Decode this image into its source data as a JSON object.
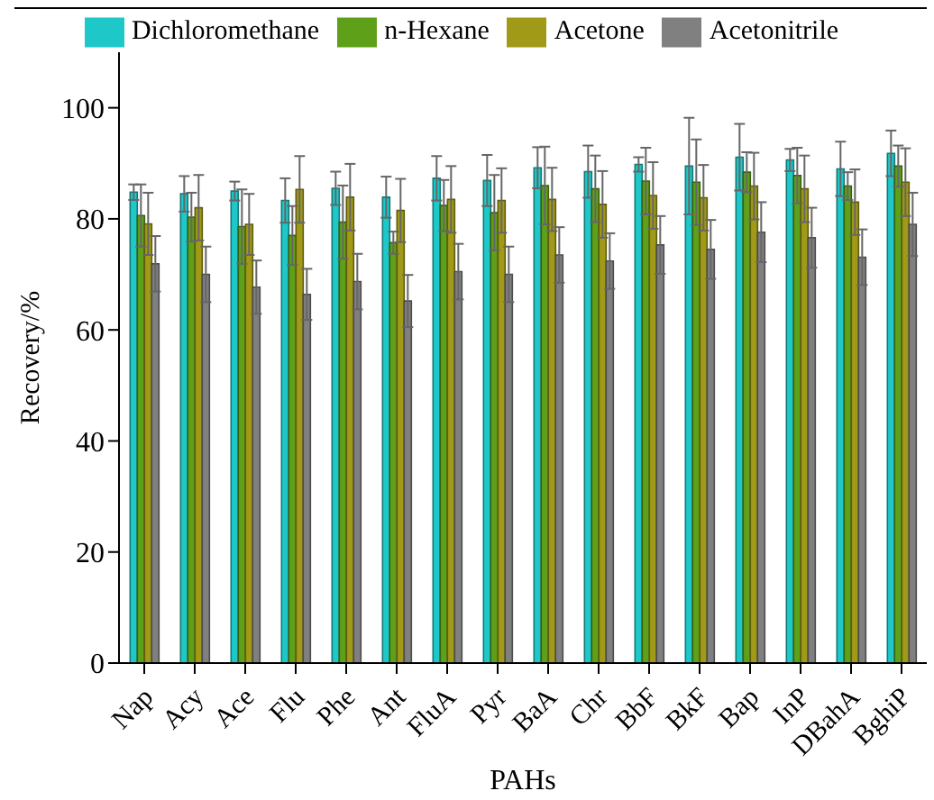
{
  "chart_data": {
    "type": "bar",
    "xlabel": "PAHs",
    "ylabel": "Recovery/%",
    "categories": [
      "Nap",
      "Acy",
      "Ace",
      "Flu",
      "Phe",
      "Ant",
      "FluA",
      "Pyr",
      "BaA",
      "Chr",
      "BbF",
      "BkF",
      "Bap",
      "InP",
      "DBahA",
      "BghiP"
    ],
    "series": [
      {
        "name": "Dichloromethane",
        "color": "#1fc8c8",
        "values": [
          84.8,
          84.5,
          85.0,
          83.3,
          85.5,
          83.9,
          87.3,
          86.9,
          89.2,
          88.5,
          89.8,
          89.5,
          91.1,
          90.6,
          89.0,
          91.8
        ],
        "errors": [
          1.4,
          3.2,
          1.7,
          4.0,
          3.0,
          3.7,
          4.0,
          4.6,
          3.7,
          4.7,
          1.3,
          8.7,
          6.0,
          2.0,
          4.9,
          4.1
        ]
      },
      {
        "name": "n-Hexane",
        "color": "#5fa01a",
        "values": [
          80.6,
          80.3,
          78.6,
          77.0,
          79.4,
          75.7,
          82.4,
          81.1,
          86.0,
          85.4,
          86.8,
          86.6,
          88.4,
          87.8,
          85.9,
          89.5
        ],
        "errors": [
          5.6,
          4.4,
          6.7,
          5.3,
          6.6,
          2.0,
          4.6,
          6.8,
          7.0,
          6.0,
          6.0,
          7.7,
          3.6,
          5.0,
          2.5,
          3.7
        ]
      },
      {
        "name": "Acetone",
        "color": "#a09a18",
        "values": [
          79.1,
          82.0,
          79.0,
          85.3,
          83.9,
          81.5,
          83.5,
          83.3,
          83.5,
          82.6,
          84.2,
          83.8,
          85.9,
          85.4,
          83.0,
          86.6
        ],
        "errors": [
          5.6,
          5.9,
          5.5,
          6.0,
          6.0,
          5.7,
          6.0,
          5.8,
          5.7,
          6.0,
          6.0,
          5.9,
          6.0,
          6.0,
          5.9,
          6.1
        ]
      },
      {
        "name": "Acetonitrile",
        "color": "#808080",
        "values": [
          71.9,
          70.0,
          67.7,
          66.4,
          68.7,
          65.2,
          70.5,
          70.0,
          73.5,
          72.4,
          75.3,
          74.5,
          77.6,
          76.6,
          73.1,
          79.0
        ],
        "errors": [
          5.0,
          5.0,
          4.8,
          4.6,
          5.0,
          4.7,
          5.0,
          5.0,
          5.0,
          5.0,
          5.2,
          5.3,
          5.4,
          5.4,
          5.0,
          5.7
        ]
      }
    ],
    "ylim": [
      0,
      110
    ],
    "yticks": [
      0,
      20,
      40,
      60,
      80,
      100
    ],
    "grid": false,
    "legend": "top"
  }
}
